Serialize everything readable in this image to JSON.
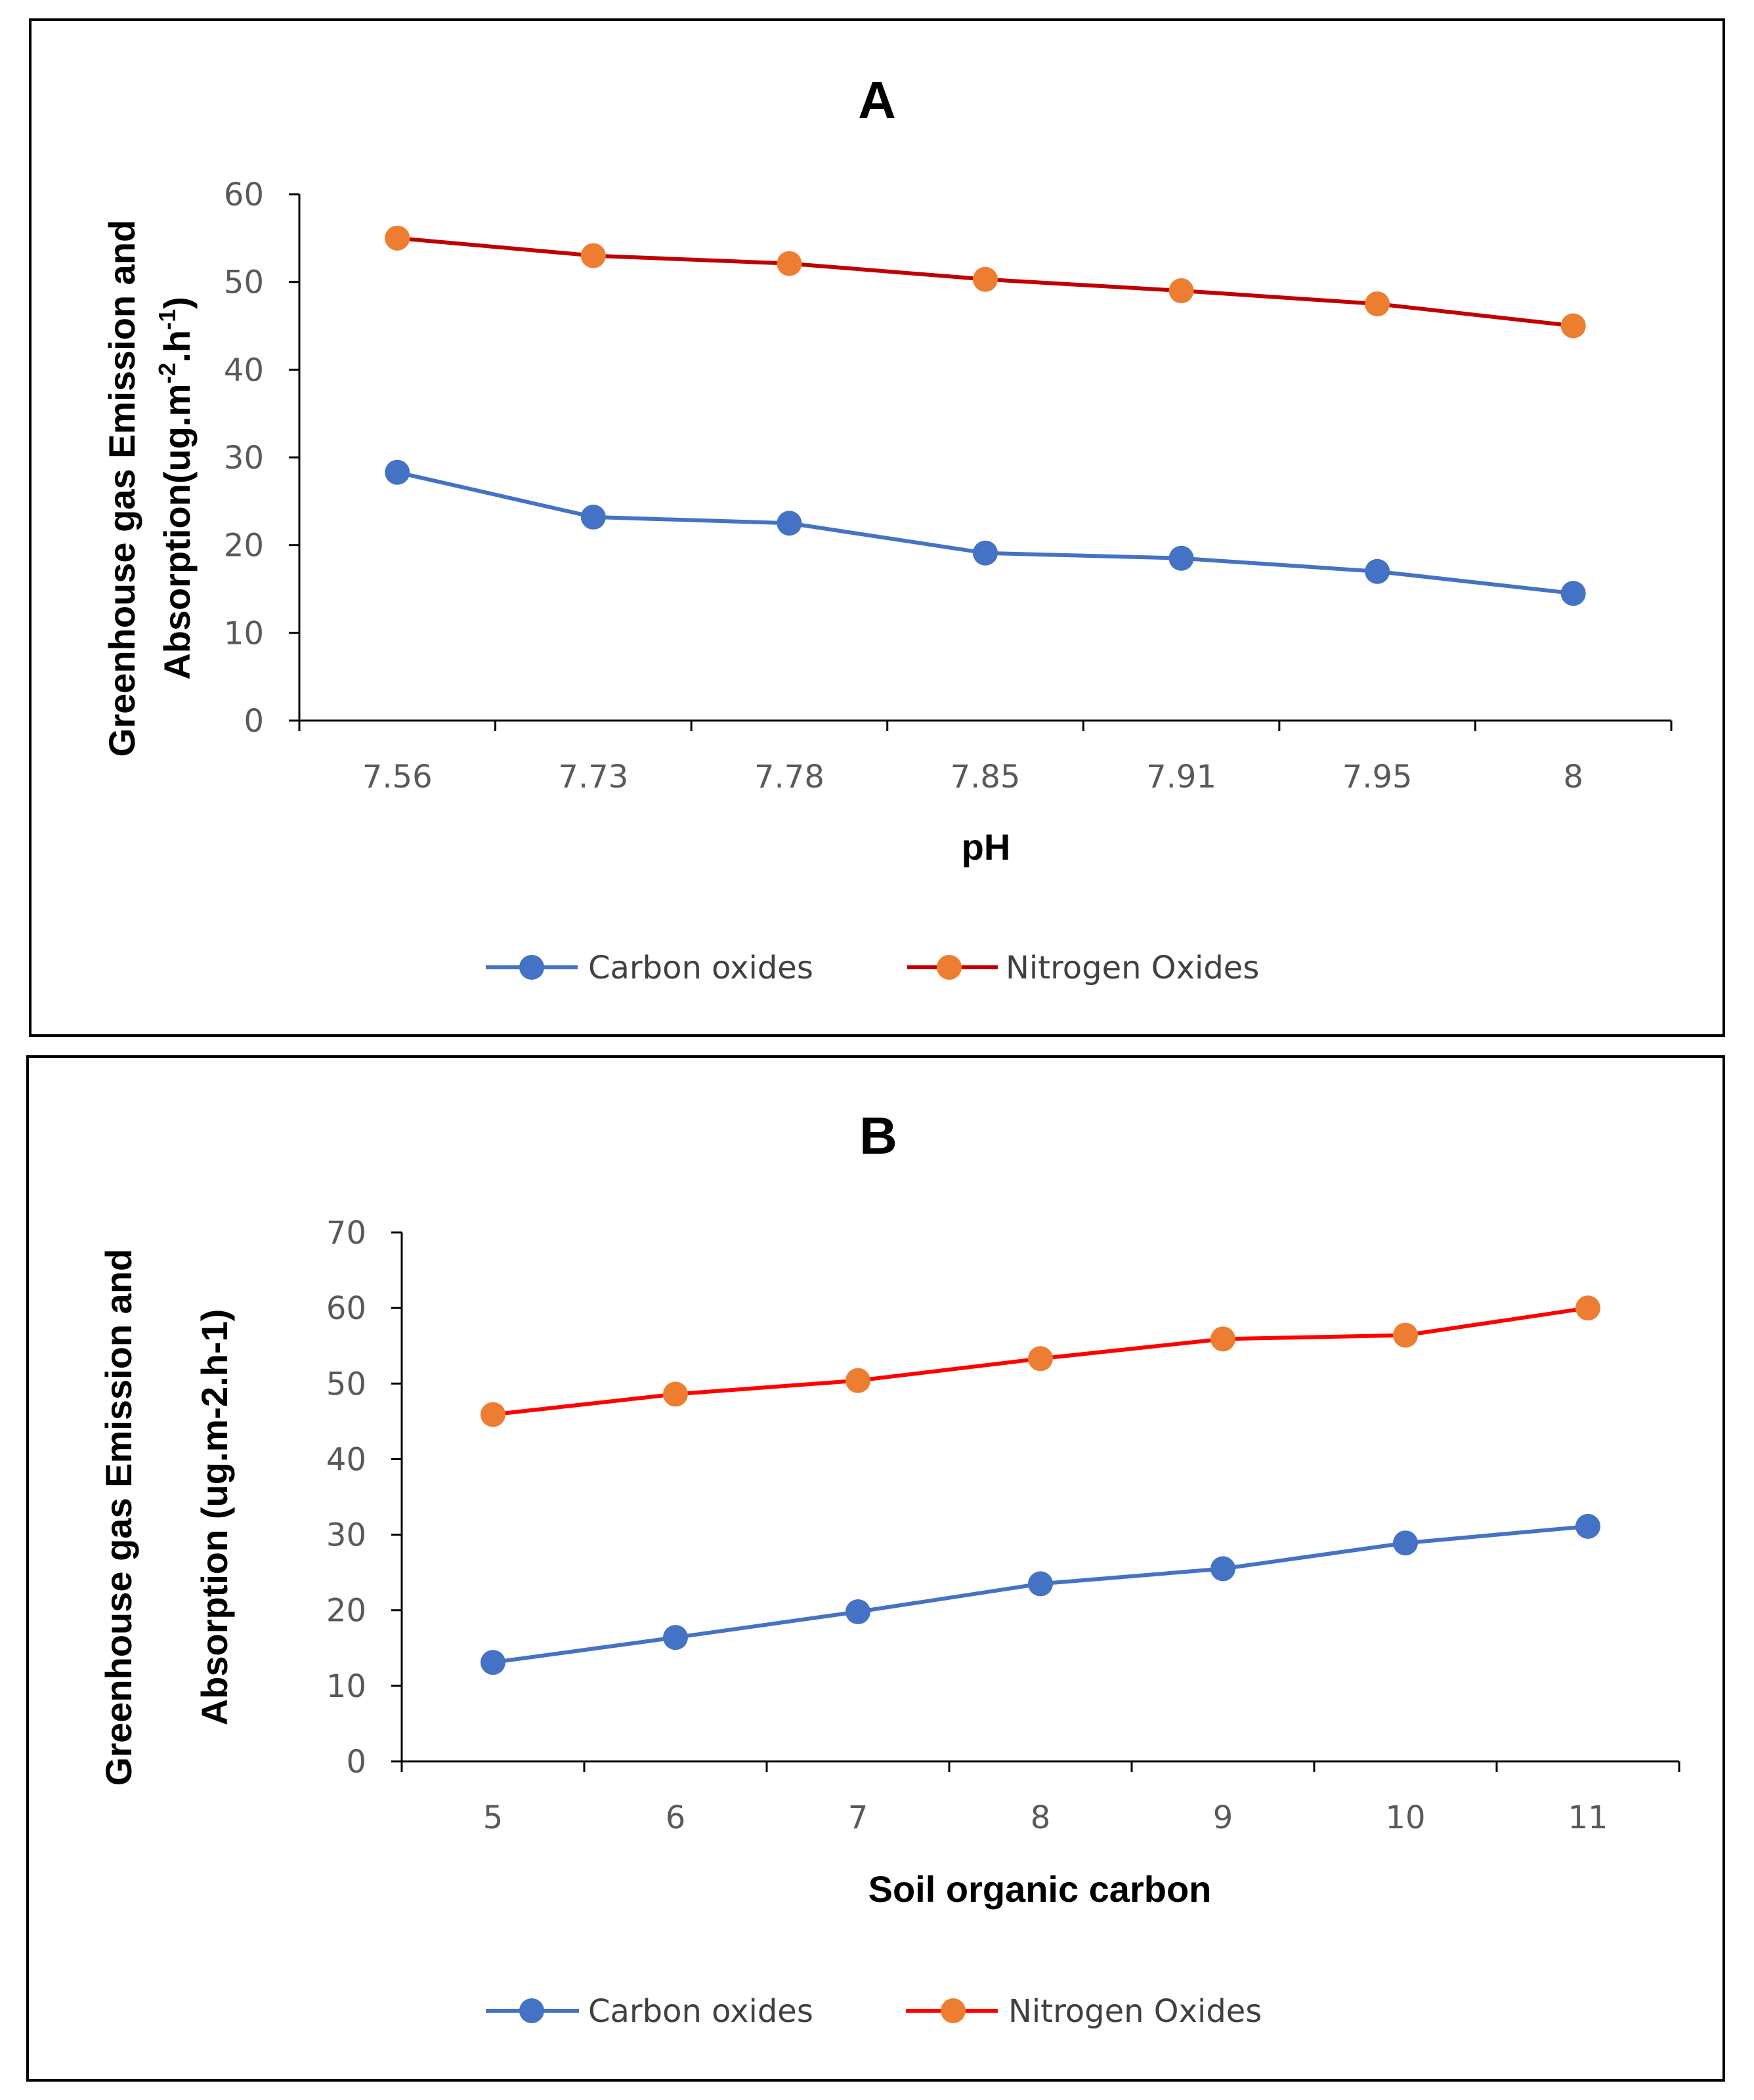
{
  "chart_data": [
    {
      "panel": "A",
      "type": "line",
      "title": "A",
      "xlabel": "pH",
      "ylabel_line1": "Greenhouse gas Emission and",
      "ylabel_line2_prefix": "Absorption(ug.m",
      "ylabel_sup1": "-2",
      "ylabel_mid": ".h",
      "ylabel_sup2": "-1",
      "ylabel_suffix": ")",
      "categories": [
        "7.56",
        "7.73",
        "7.78",
        "7.85",
        "7.91",
        "7.95",
        "8"
      ],
      "ylim": [
        0,
        60
      ],
      "yticks": [
        "0",
        "10",
        "20",
        "30",
        "40",
        "50",
        "60"
      ],
      "grid": false,
      "legend_position": "bottom",
      "series": [
        {
          "name": "Carbon oxides",
          "line_color": "#4472C4",
          "marker_color": "#4472C4",
          "values": [
            28.3,
            23.2,
            22.5,
            19.1,
            18.5,
            17.0,
            14.5
          ]
        },
        {
          "name": "Nitrogen Oxides",
          "line_color": "#C00000",
          "marker_color": "#ED7D31",
          "values": [
            55,
            53,
            52.1,
            50.3,
            49,
            47.5,
            45
          ]
        }
      ]
    },
    {
      "panel": "B",
      "type": "line",
      "title": "B",
      "xlabel": "Soil organic carbon",
      "ylabel_line1": "Greenhouse gas Emission and",
      "ylabel_line2": "Absorption  (ug.m-2.h-1)",
      "categories": [
        "5",
        "6",
        "7",
        "8",
        "9",
        "10",
        "11"
      ],
      "ylim": [
        0,
        70
      ],
      "yticks": [
        "0",
        "10",
        "20",
        "30",
        "40",
        "50",
        "60",
        "70"
      ],
      "grid": false,
      "legend_position": "bottom",
      "series": [
        {
          "name": "Carbon oxides",
          "line_color": "#4472C4",
          "marker_color": "#4472C4",
          "values": [
            13.1,
            16.4,
            19.8,
            23.5,
            25.5,
            28.9,
            31.1
          ]
        },
        {
          "name": "Nitrogen Oxides",
          "line_color": "#FF0000",
          "marker_color": "#ED7D31",
          "values": [
            45.9,
            48.6,
            50.4,
            53.3,
            55.9,
            56.4,
            60
          ]
        }
      ]
    }
  ]
}
